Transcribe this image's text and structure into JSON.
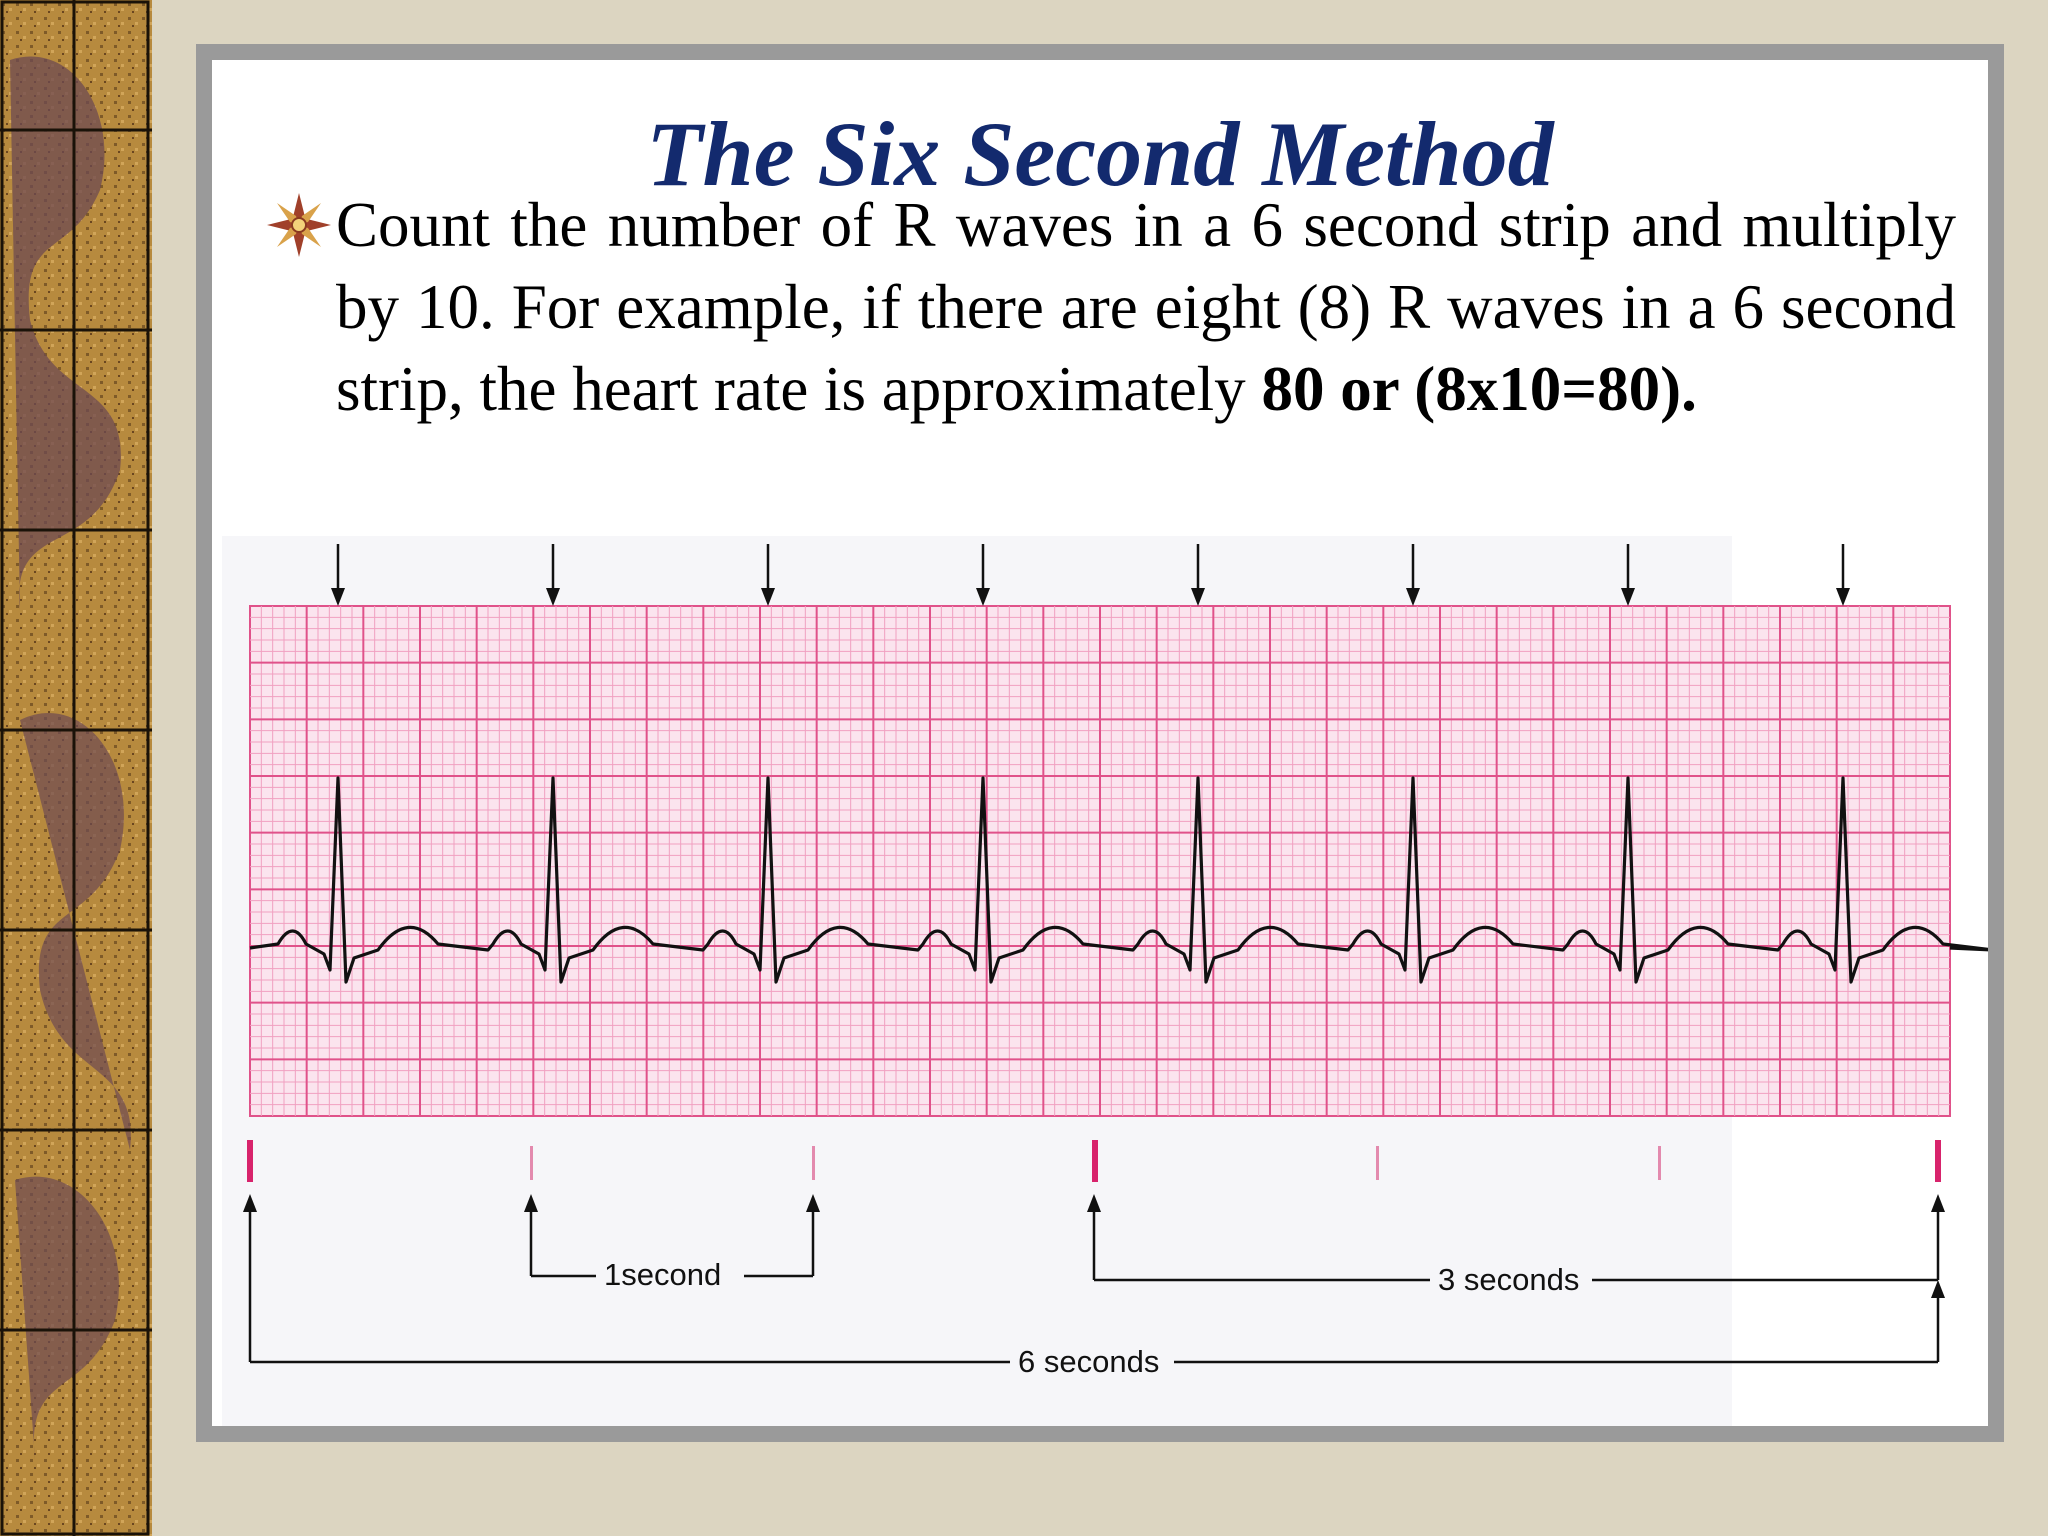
{
  "slide": {
    "title": "The Six Second Method",
    "bullet_icon": "star-burst-icon",
    "body": {
      "part1": "Count the number of R waves in a 6 second strip and multiply by 10. For example, if there are eight (8) R waves in a 6 second strip, the heart rate is approximately ",
      "bold1": "80 or (8x10=80)",
      "end": "."
    }
  },
  "figure": {
    "r_wave_count": 8,
    "grid_color": "#e0528a",
    "tick_color": "#d8236c",
    "labels": {
      "one_second": "1second",
      "three_seconds": "3 seconds",
      "six_seconds": "6 seconds"
    }
  }
}
